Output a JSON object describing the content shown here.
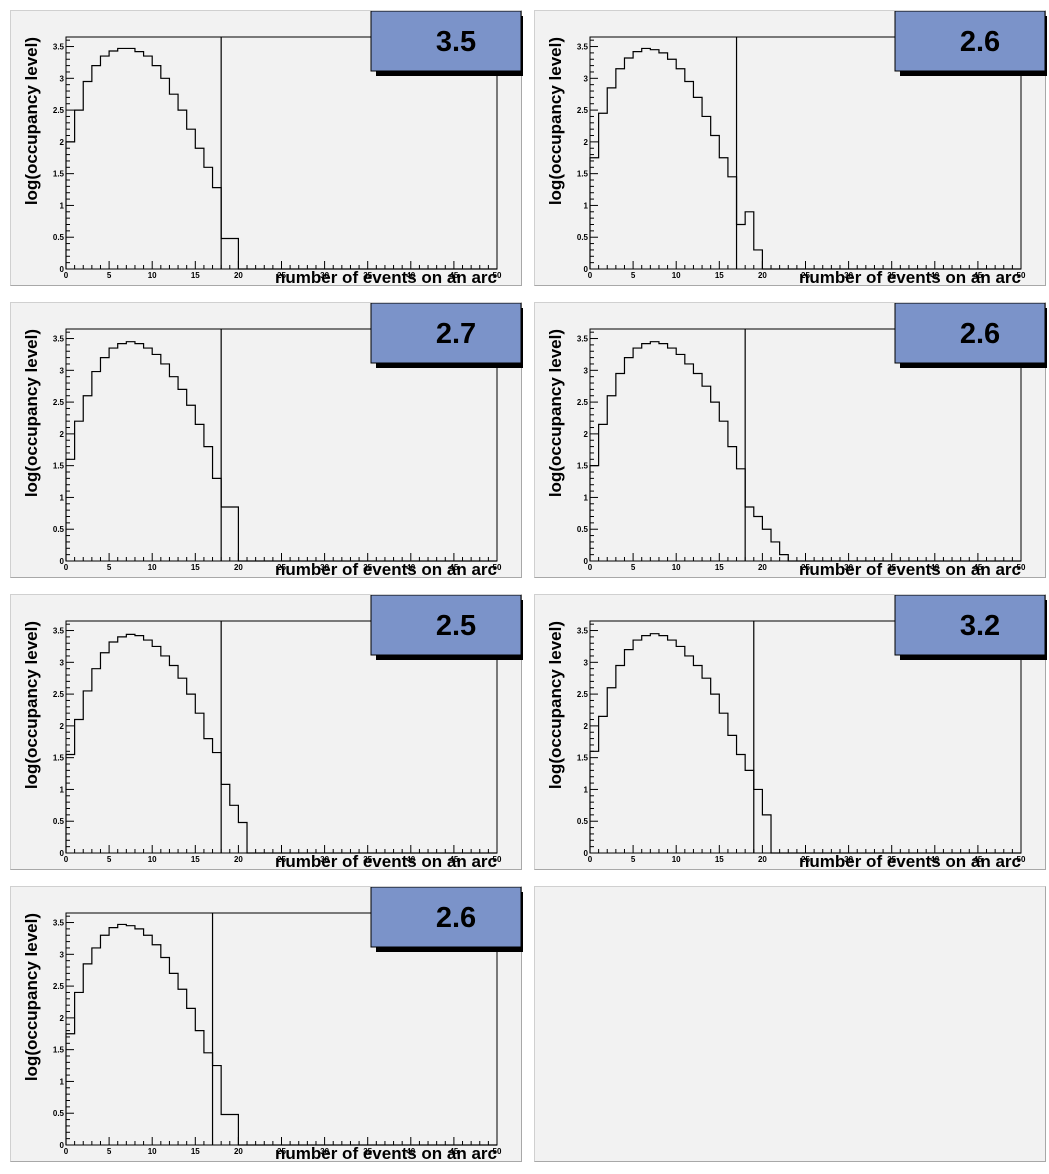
{
  "chart_data": [
    {
      "type": "bar",
      "title": "3.5",
      "xlabel": "number of events on an arc",
      "ylabel": "log(occupancy level)",
      "xlim": [
        0,
        50
      ],
      "ylim": [
        0,
        3.65
      ],
      "x_ticks": [
        "0",
        "5",
        "10",
        "15",
        "20",
        "25",
        "30",
        "35",
        "40",
        "45",
        "50"
      ],
      "y_ticks": [
        "0",
        "0.5",
        "1",
        "1.5",
        "2",
        "2.5",
        "3",
        "3.5"
      ],
      "cut_line_x": 18,
      "bin_width": 1,
      "values": [
        2.0,
        2.5,
        2.95,
        3.2,
        3.35,
        3.43,
        3.47,
        3.47,
        3.42,
        3.35,
        3.2,
        3.0,
        2.75,
        2.5,
        2.2,
        1.9,
        1.6,
        1.28,
        0.48,
        0.48,
        0,
        0,
        0,
        0,
        0,
        0,
        0,
        0,
        0,
        0,
        0,
        0,
        0,
        0,
        0,
        0,
        0,
        0,
        0,
        0,
        0,
        0,
        0,
        0,
        0,
        0,
        0,
        0,
        0,
        0
      ]
    },
    {
      "type": "bar",
      "title": "2.6",
      "xlabel": "number of events on an arc",
      "ylabel": "log(occupancy level)",
      "xlim": [
        0,
        50
      ],
      "ylim": [
        0,
        3.65
      ],
      "x_ticks": [
        "0",
        "5",
        "10",
        "15",
        "20",
        "25",
        "30",
        "35",
        "40",
        "45",
        "50"
      ],
      "y_ticks": [
        "0",
        "0.5",
        "1",
        "1.5",
        "2",
        "2.5",
        "3",
        "3.5"
      ],
      "cut_line_x": 17,
      "bin_width": 1,
      "values": [
        1.75,
        2.45,
        2.85,
        3.15,
        3.32,
        3.42,
        3.47,
        3.45,
        3.4,
        3.3,
        3.15,
        2.95,
        2.7,
        2.4,
        2.1,
        1.75,
        1.45,
        0.7,
        0.9,
        0.3,
        0,
        0,
        0,
        0,
        0,
        0,
        0,
        0,
        0,
        0,
        0,
        0,
        0,
        0,
        0,
        0,
        0,
        0,
        0,
        0,
        0,
        0,
        0,
        0,
        0,
        0,
        0,
        0,
        0,
        0
      ]
    },
    {
      "type": "bar",
      "title": "2.7",
      "xlabel": "number of events on an arc",
      "ylabel": "log(occupancy level)",
      "xlim": [
        0,
        50
      ],
      "ylim": [
        0,
        3.65
      ],
      "x_ticks": [
        "0",
        "5",
        "10",
        "15",
        "20",
        "25",
        "30",
        "35",
        "40",
        "45",
        "50"
      ],
      "y_ticks": [
        "0",
        "0.5",
        "1",
        "1.5",
        "2",
        "2.5",
        "3",
        "3.5"
      ],
      "cut_line_x": 18,
      "bin_width": 1,
      "values": [
        1.6,
        2.2,
        2.6,
        2.98,
        3.2,
        3.35,
        3.42,
        3.45,
        3.42,
        3.35,
        3.25,
        3.1,
        2.9,
        2.7,
        2.45,
        2.15,
        1.8,
        1.3,
        0.85,
        0.85,
        0,
        0,
        0,
        0,
        0,
        0,
        0,
        0,
        0,
        0,
        0,
        0,
        0,
        0,
        0,
        0,
        0,
        0,
        0,
        0,
        0,
        0,
        0,
        0,
        0,
        0,
        0,
        0,
        0,
        0
      ]
    },
    {
      "type": "bar",
      "title": "2.6",
      "xlabel": "number of events on an arc",
      "ylabel": "log(occupancy level)",
      "xlim": [
        0,
        50
      ],
      "ylim": [
        0,
        3.65
      ],
      "x_ticks": [
        "0",
        "5",
        "10",
        "15",
        "20",
        "25",
        "30",
        "35",
        "40",
        "45",
        "50"
      ],
      "y_ticks": [
        "0",
        "0.5",
        "1",
        "1.5",
        "2",
        "2.5",
        "3",
        "3.5"
      ],
      "cut_line_x": 18,
      "bin_width": 1,
      "values": [
        1.5,
        2.15,
        2.6,
        2.95,
        3.2,
        3.35,
        3.42,
        3.45,
        3.42,
        3.35,
        3.25,
        3.1,
        2.95,
        2.75,
        2.5,
        2.2,
        1.8,
        1.45,
        0.85,
        0.7,
        0.5,
        0.3,
        0.1,
        0,
        0,
        0,
        0,
        0,
        0,
        0,
        0,
        0,
        0,
        0,
        0,
        0,
        0,
        0,
        0,
        0,
        0,
        0,
        0,
        0,
        0,
        0,
        0,
        0,
        0,
        0
      ]
    },
    {
      "type": "bar",
      "title": "2.5",
      "xlabel": "number of events on an arc",
      "ylabel": "log(occupancy level)",
      "xlim": [
        0,
        50
      ],
      "ylim": [
        0,
        3.65
      ],
      "x_ticks": [
        "0",
        "5",
        "10",
        "15",
        "20",
        "25",
        "30",
        "35",
        "40",
        "45",
        "50"
      ],
      "y_ticks": [
        "0",
        "0.5",
        "1",
        "1.5",
        "2",
        "2.5",
        "3",
        "3.5"
      ],
      "cut_line_x": 18,
      "bin_width": 1,
      "values": [
        1.55,
        2.1,
        2.55,
        2.9,
        3.15,
        3.32,
        3.4,
        3.44,
        3.42,
        3.35,
        3.25,
        3.1,
        2.95,
        2.75,
        2.5,
        2.2,
        1.8,
        1.58,
        1.08,
        0.75,
        0.48,
        0,
        0,
        0,
        0,
        0,
        0,
        0,
        0,
        0,
        0,
        0,
        0,
        0,
        0,
        0,
        0,
        0,
        0,
        0,
        0,
        0,
        0,
        0,
        0,
        0,
        0,
        0,
        0,
        0
      ]
    },
    {
      "type": "bar",
      "title": "3.2",
      "xlabel": "number of events on an arc",
      "ylabel": "log(occupancy level)",
      "xlim": [
        0,
        50
      ],
      "ylim": [
        0,
        3.65
      ],
      "x_ticks": [
        "0",
        "5",
        "10",
        "15",
        "20",
        "25",
        "30",
        "35",
        "40",
        "45",
        "50"
      ],
      "y_ticks": [
        "0",
        "0.5",
        "1",
        "1.5",
        "2",
        "2.5",
        "3",
        "3.5"
      ],
      "cut_line_x": 19,
      "bin_width": 1,
      "values": [
        1.6,
        2.15,
        2.6,
        2.95,
        3.2,
        3.35,
        3.42,
        3.45,
        3.42,
        3.35,
        3.25,
        3.1,
        2.95,
        2.75,
        2.5,
        2.2,
        1.85,
        1.55,
        1.3,
        1.0,
        0.6,
        0,
        0,
        0,
        0,
        0,
        0,
        0,
        0,
        0,
        0,
        0,
        0,
        0,
        0,
        0,
        0,
        0,
        0,
        0,
        0,
        0,
        0,
        0,
        0,
        0,
        0,
        0,
        0,
        0
      ]
    },
    {
      "type": "bar",
      "title": "2.6",
      "xlabel": "number of events on an arc",
      "ylabel": "log(occupancy level)",
      "xlim": [
        0,
        50
      ],
      "ylim": [
        0,
        3.65
      ],
      "x_ticks": [
        "0",
        "5",
        "10",
        "15",
        "20",
        "25",
        "30",
        "35",
        "40",
        "45",
        "50"
      ],
      "y_ticks": [
        "0",
        "0.5",
        "1",
        "1.5",
        "2",
        "2.5",
        "3",
        "3.5"
      ],
      "cut_line_x": 17,
      "bin_width": 1,
      "values": [
        1.75,
        2.4,
        2.85,
        3.1,
        3.3,
        3.42,
        3.47,
        3.45,
        3.4,
        3.3,
        3.15,
        2.95,
        2.7,
        2.45,
        2.15,
        1.8,
        1.45,
        1.25,
        0.48,
        0.48,
        0,
        0,
        0,
        0,
        0,
        0,
        0,
        0,
        0,
        0,
        0,
        0,
        0,
        0,
        0,
        0,
        0,
        0,
        0,
        0,
        0,
        0,
        0,
        0,
        0,
        0,
        0,
        0,
        0,
        0
      ]
    }
  ]
}
